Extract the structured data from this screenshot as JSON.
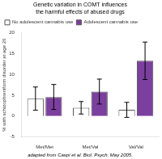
{
  "chart_data": {
    "type": "bar",
    "title": [
      "Genetic variation in COMT influences",
      "the harmful effects of abused drugs"
    ],
    "caption": "adapted from Caspi et al. Biol. Psych, May 2005.",
    "categories": [
      "Met/Met",
      "Met/Val",
      "Val/Val"
    ],
    "series": [
      {
        "name": "No adolescent cannabis use",
        "color": "#ffffff",
        "values": [
          4.2,
          2.0,
          1.5
        ],
        "errors": [
          2.8,
          1.5,
          1.8
        ]
      },
      {
        "name": "Adolescent cannabis use",
        "color": "#7b3f9e",
        "values": [
          4.6,
          5.9,
          13.3
        ],
        "errors": [
          3.0,
          3.0,
          4.5
        ]
      }
    ],
    "ylabel": "% with schizophreniform disorder at age 26",
    "ylim": [
      -5,
      20
    ],
    "yticks": [
      -5,
      0,
      5,
      10,
      15,
      20
    ],
    "grid": false,
    "legend": "upper left"
  }
}
